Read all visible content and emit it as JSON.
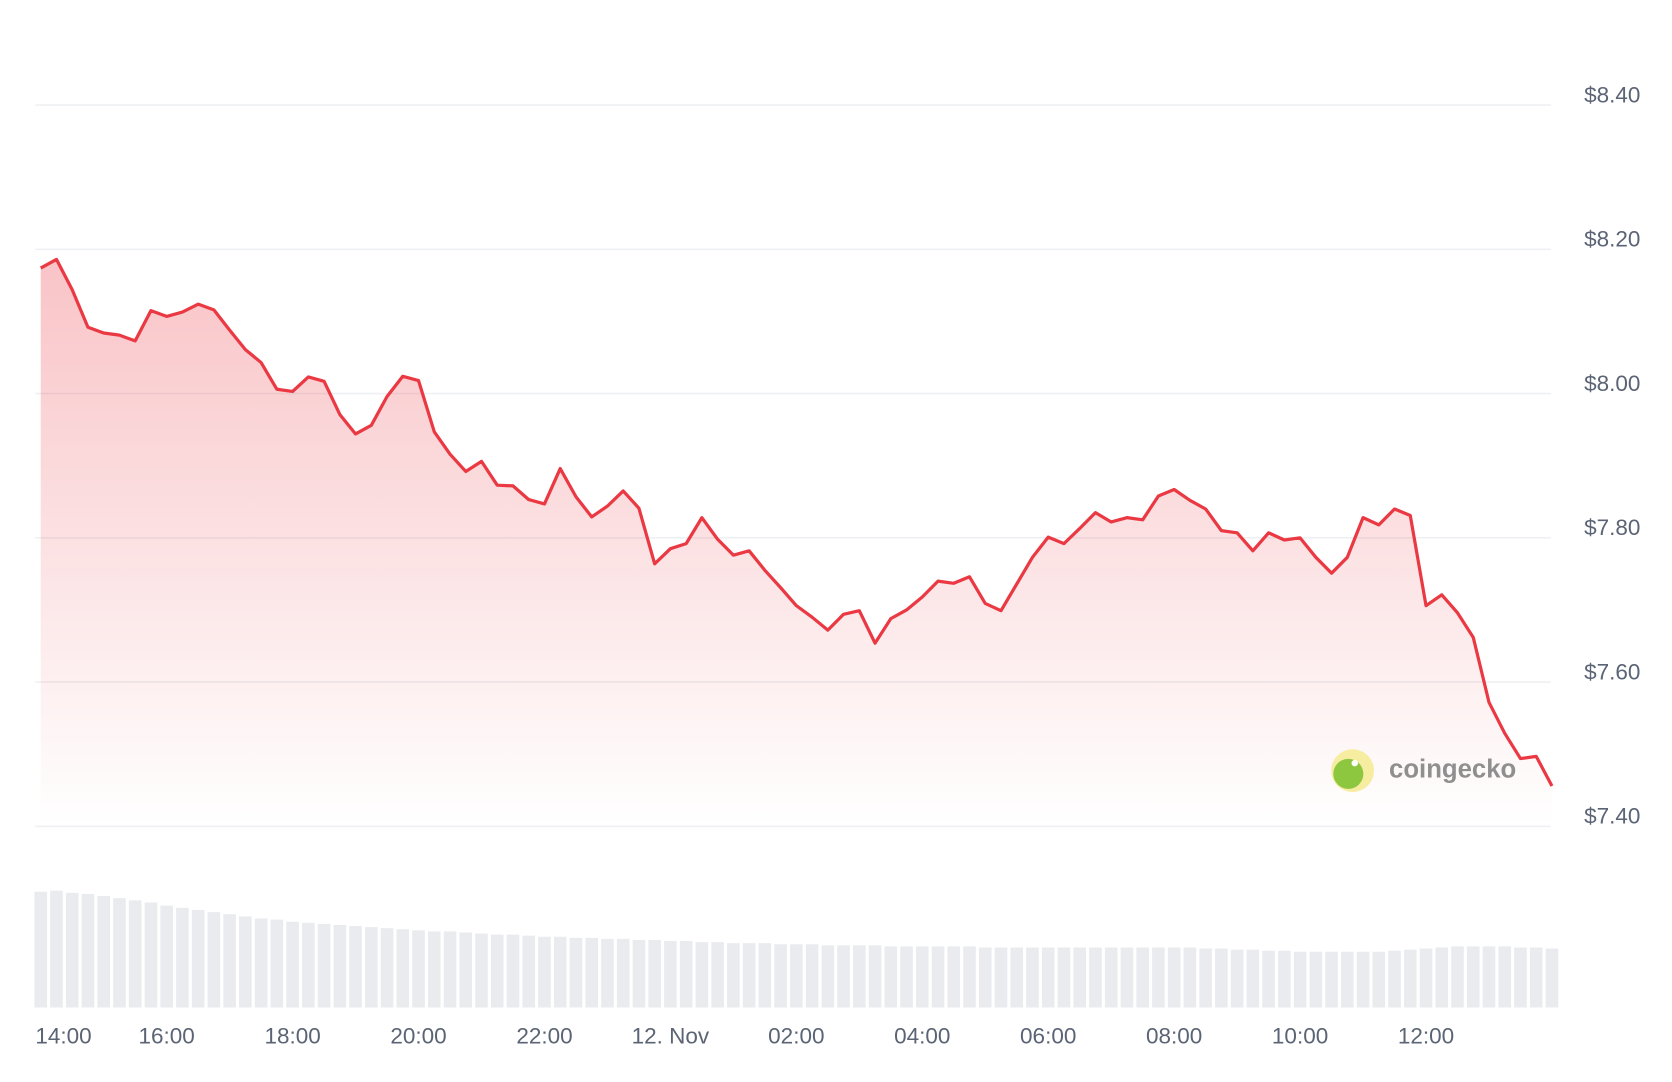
{
  "chart_data": {
    "type": "line",
    "categories": [
      "14:00",
      null,
      null,
      null,
      null,
      null,
      null,
      null,
      "16:00",
      null,
      null,
      null,
      null,
      null,
      null,
      null,
      "18:00",
      null,
      null,
      null,
      null,
      null,
      null,
      null,
      "20:00",
      null,
      null,
      null,
      null,
      null,
      null,
      null,
      "22:00",
      null,
      null,
      null,
      null,
      null,
      null,
      null,
      "12. Nov",
      null,
      null,
      null,
      null,
      null,
      null,
      null,
      "02:00",
      null,
      null,
      null,
      null,
      null,
      null,
      null,
      "04:00",
      null,
      null,
      null,
      null,
      null,
      null,
      null,
      "06:00",
      null,
      null,
      null,
      null,
      null,
      null,
      null,
      "08:00",
      null,
      null,
      null,
      null,
      null,
      null,
      null,
      "10:00",
      null,
      null,
      null,
      null,
      null,
      null,
      null,
      "12:00",
      null,
      null,
      null,
      null,
      null,
      null,
      null,
      null
    ],
    "values": [
      8.174,
      8.186,
      8.144,
      8.092,
      8.084,
      8.081,
      8.073,
      8.115,
      8.107,
      8.113,
      8.124,
      8.116,
      8.088,
      8.061,
      8.043,
      8.006,
      8.003,
      8.023,
      8.017,
      7.971,
      7.944,
      7.956,
      7.996,
      8.024,
      8.018,
      7.947,
      7.916,
      7.892,
      7.906,
      7.873,
      7.872,
      7.853,
      7.847,
      7.896,
      7.857,
      7.829,
      7.844,
      7.865,
      7.841,
      7.764,
      7.785,
      7.792,
      7.828,
      7.798,
      7.776,
      7.782,
      7.755,
      7.731,
      7.706,
      7.69,
      7.672,
      7.694,
      7.699,
      7.654,
      7.688,
      7.7,
      7.718,
      7.74,
      7.737,
      7.746,
      7.709,
      7.699,
      7.736,
      7.773,
      7.801,
      7.792,
      7.813,
      7.835,
      7.822,
      7.828,
      7.825,
      7.858,
      7.867,
      7.852,
      7.84,
      7.81,
      7.807,
      7.782,
      7.807,
      7.797,
      7.8,
      7.773,
      7.751,
      7.773,
      7.828,
      7.818,
      7.84,
      7.831,
      7.706,
      7.721,
      7.696,
      7.662,
      7.572,
      7.529,
      7.494,
      7.497,
      7.456
    ],
    "color": "#ea3943",
    "volume_values": [
      108,
      109,
      107,
      106,
      104,
      102,
      100,
      98,
      95,
      93,
      91,
      89,
      87,
      85,
      83,
      82,
      80,
      79,
      78,
      77,
      76,
      75,
      74,
      73,
      72,
      71,
      71,
      70,
      69,
      68,
      68,
      67,
      66,
      66,
      65,
      65,
      64,
      64,
      63,
      63,
      62,
      62,
      61,
      61,
      60,
      60,
      60,
      59,
      59,
      59,
      58,
      58,
      58,
      58,
      57,
      57,
      57,
      57,
      57,
      57,
      56,
      56,
      56,
      56,
      56,
      56,
      56,
      56,
      56,
      56,
      56,
      56,
      56,
      56,
      55,
      55,
      54,
      54,
      53,
      53,
      52,
      52,
      52,
      52,
      52,
      52,
      53,
      54,
      55,
      56,
      57,
      57,
      57,
      57,
      56,
      56,
      55
    ],
    "volume_color": "#e9ebef",
    "volume_lim": [
      0,
      112
    ],
    "ylim": [
      7.4,
      8.4
    ],
    "yticks": [
      {
        "value": 7.4,
        "label": "$7.40"
      },
      {
        "value": 7.6,
        "label": "$7.60"
      },
      {
        "value": 7.8,
        "label": "$7.80"
      },
      {
        "value": 8.0,
        "label": "$8.00"
      },
      {
        "value": 8.2,
        "label": "$8.20"
      },
      {
        "value": 8.4,
        "label": "$8.40"
      }
    ],
    "grid": true,
    "watermark": "coingecko"
  }
}
